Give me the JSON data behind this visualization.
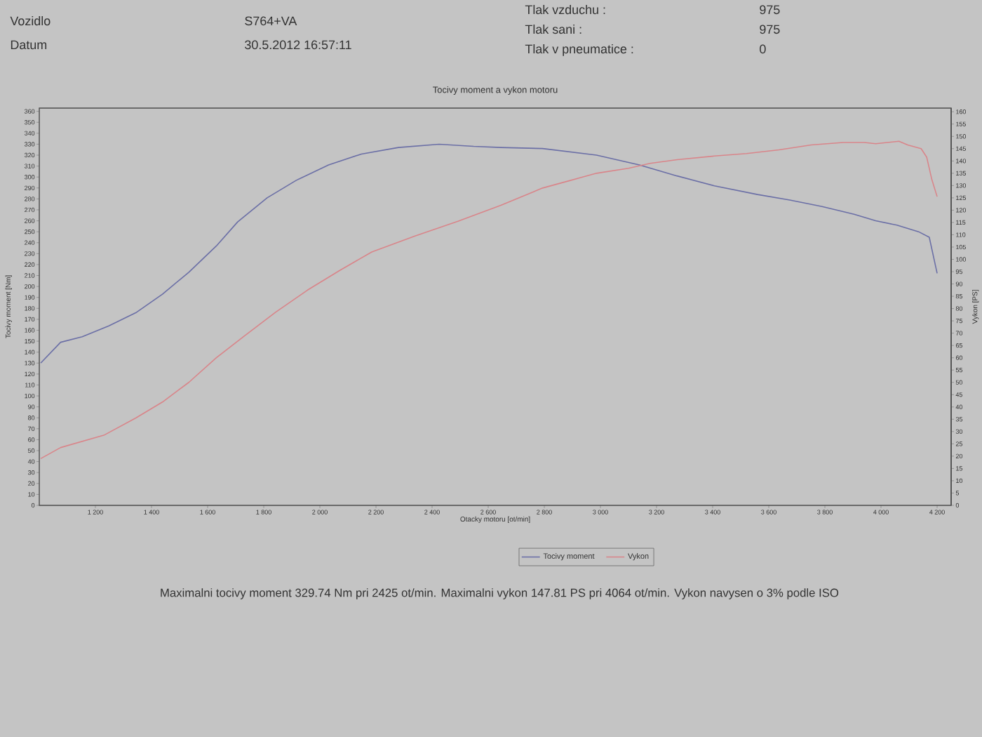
{
  "chart_data": {
    "type": "line",
    "title": "Tocivy moment a vykon motoru",
    "xlabel": "Otacky motoru [ot/min]",
    "ylabel": "Tocivy moment [Nm]",
    "y2label": "Vykon [PS]",
    "xlim": [
      1000,
      4250
    ],
    "xticks": [
      {
        "value": 1200,
        "label": "1 200"
      },
      {
        "value": 1400,
        "label": "1 400"
      },
      {
        "value": 1600,
        "label": "1 600"
      },
      {
        "value": 1800,
        "label": "1 800"
      },
      {
        "value": 2000,
        "label": "2 000"
      },
      {
        "value": 2200,
        "label": "2 200"
      },
      {
        "value": 2400,
        "label": "2 400"
      },
      {
        "value": 2600,
        "label": "2 600"
      },
      {
        "value": 2800,
        "label": "2 800"
      },
      {
        "value": 3000,
        "label": "3 000"
      },
      {
        "value": 3200,
        "label": "3 200"
      },
      {
        "value": 3400,
        "label": "3 400"
      },
      {
        "value": 3600,
        "label": "3 600"
      },
      {
        "value": 3800,
        "label": "3 800"
      },
      {
        "value": 4000,
        "label": "4 000"
      },
      {
        "value": 4200,
        "label": "4 200"
      }
    ],
    "ylim": [
      0,
      363
    ],
    "yticks": [
      0,
      10,
      20,
      30,
      40,
      50,
      60,
      70,
      80,
      90,
      100,
      110,
      120,
      130,
      140,
      150,
      160,
      170,
      180,
      190,
      200,
      210,
      220,
      230,
      240,
      250,
      260,
      270,
      280,
      290,
      300,
      310,
      320,
      330,
      340,
      350,
      360
    ],
    "y2lim": [
      0,
      161.5
    ],
    "y2ticks": [
      0,
      5,
      10,
      15,
      20,
      25,
      30,
      35,
      40,
      45,
      50,
      55,
      60,
      65,
      70,
      75,
      80,
      85,
      90,
      95,
      100,
      105,
      110,
      115,
      120,
      125,
      130,
      135,
      140,
      145,
      150,
      155,
      160
    ],
    "legend": "bottom",
    "series": [
      {
        "name": "Tocivy moment",
        "color": "#6b6fa6",
        "x": [
          1005,
          1076,
          1153,
          1248,
          1344,
          1439,
          1533,
          1631,
          1707,
          1812,
          1916,
          2031,
          2148,
          2280,
          2425,
          2548,
          2645,
          2794,
          2986,
          3139,
          3273,
          3406,
          3560,
          3675,
          3790,
          3904,
          3981,
          4057,
          4134,
          4172,
          4200
        ],
        "values": [
          130,
          149,
          154,
          164,
          176,
          193,
          213,
          237,
          259,
          281,
          297,
          311,
          321,
          327,
          330,
          328,
          327,
          326,
          320,
          311,
          301,
          292,
          284,
          279,
          273,
          266,
          260,
          256,
          250,
          245,
          212
        ]
      },
      {
        "name": "Vykon",
        "color": "#d9858a",
        "axis": "y2",
        "x": [
          1005,
          1076,
          1230,
          1344,
          1439,
          1533,
          1631,
          1727,
          1842,
          1956,
          2071,
          2185,
          2339,
          2492,
          2645,
          2794,
          2890,
          2986,
          3100,
          3177,
          3273,
          3406,
          3521,
          3636,
          3751,
          3865,
          3941,
          3981,
          4064,
          4095,
          4143,
          4163,
          4181,
          4200
        ],
        "values": [
          19,
          23.5,
          28.5,
          35.5,
          42,
          50,
          60,
          68.5,
          78.5,
          87.5,
          95.5,
          103,
          109.5,
          115.5,
          122,
          129,
          132,
          135,
          137,
          139,
          140.5,
          142,
          143,
          144.5,
          146.5,
          147.5,
          147.5,
          147,
          148,
          146.5,
          145,
          141.5,
          132.5,
          125.5
        ]
      }
    ],
    "annotations": [
      "Vozidlo",
      "S764+VA",
      "Datum",
      "30.5.2012 16:57:11",
      "Tlak vzduchu :",
      "975",
      "Tlak sani :",
      "975",
      "Tlak v pneumatice :",
      "0",
      "Maximalni tocivy moment 329.74 Nm pri 2425 ot/min. Maximalni vykon 147.81 PS pri 4064 ot/min. Vykon navysen o 3% podle ISO"
    ]
  }
}
